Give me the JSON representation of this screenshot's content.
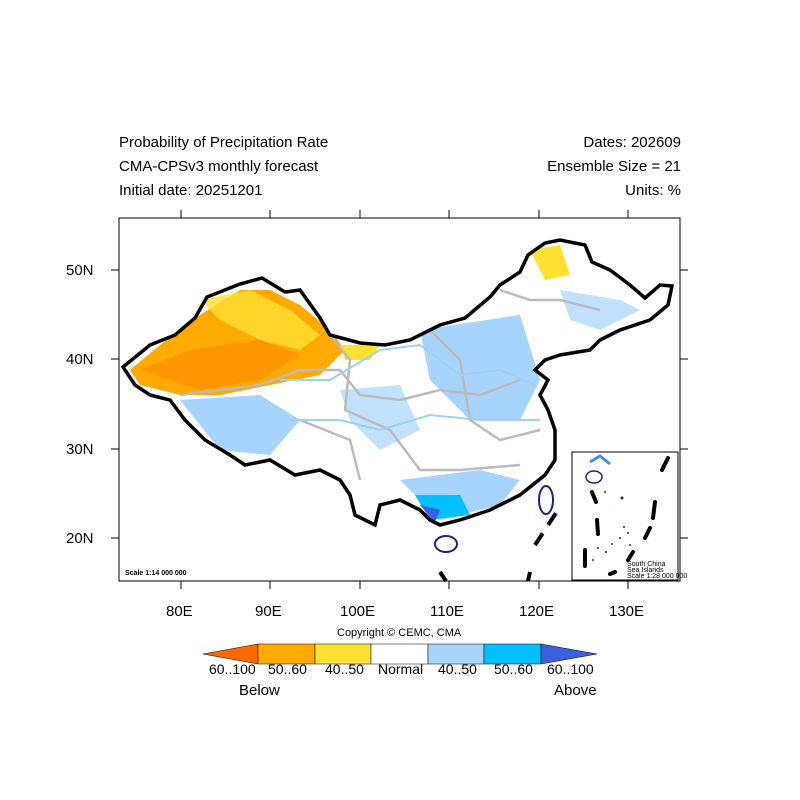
{
  "title": {
    "left": [
      "Probability of Precipitation Rate",
      "CMA-CPSv3 monthly forecast",
      "Initial date: 20251201"
    ],
    "right": [
      "Dates: 202609",
      "Ensemble Size = 21",
      "Units: %"
    ]
  },
  "map": {
    "lon_ticks": [
      "80E",
      "90E",
      "100E",
      "110E",
      "120E",
      "130E"
    ],
    "lat_ticks": [
      "50N",
      "40N",
      "30N",
      "20N"
    ],
    "lon_range": [
      73,
      136
    ],
    "lat_range": [
      15,
      56
    ],
    "scale_label": "Scale 1:14 000 000",
    "inset": {
      "lines": [
        "South China",
        "Sea Islands",
        "Scale 1:28 000 000"
      ]
    }
  },
  "copyright": "Copyright © CEMC, CMA",
  "colorbar": {
    "bins": [
      {
        "label": "60..100",
        "color": "#ff6a00"
      },
      {
        "label": "50..60",
        "color": "#ffaa00"
      },
      {
        "label": "40..50",
        "color": "#ffe033"
      },
      {
        "label": "Normal",
        "color": "#ffffff"
      },
      {
        "label": "40..50",
        "color": "#a6d4ff"
      },
      {
        "label": "50..60",
        "color": "#00bfff"
      },
      {
        "label": "60..100",
        "color": "#3a5fe0"
      }
    ],
    "below_label": "Below",
    "above_label": "Above"
  }
}
